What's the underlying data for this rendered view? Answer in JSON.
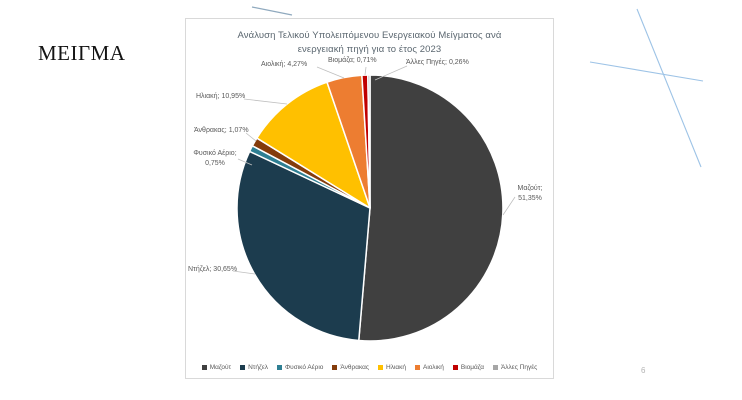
{
  "page": {
    "kicker": "ΜΕΙΓΜΑ",
    "page_number": "6"
  },
  "chart_data": {
    "type": "pie",
    "title_lines": [
      "Ανάλυση Τελικού Υπολειπόμενου Ενεργειακού Μείγματος ανά",
      "ενεργειακή πηγή για το έτος 2023"
    ],
    "unit": "%",
    "start_angle": "top",
    "direction": "clockwise",
    "legend_position": "bottom",
    "slices": [
      {
        "label": "Μαζούτ",
        "value": 51.35,
        "callout_lines": [
          "Μαζούτ;",
          "51,35%"
        ],
        "color": "#404040"
      },
      {
        "label": "Ντήζελ",
        "value": 30.65,
        "callout_lines": [
          "Ντήζελ; 30,65%"
        ],
        "color": "#1C3C4E"
      },
      {
        "label": "Φυσικό Αέριο",
        "value": 0.75,
        "callout_lines": [
          "Φυσικό Αέριο;",
          "0,75%"
        ],
        "color": "#2E7F93"
      },
      {
        "label": "Άνθρακας",
        "value": 1.07,
        "callout_lines": [
          "Άνθρακας; 1,07%"
        ],
        "color": "#843C0C"
      },
      {
        "label": "Ηλιακή",
        "value": 10.95,
        "callout_lines": [
          "Ηλιακή; 10,95%"
        ],
        "color": "#FFC000"
      },
      {
        "label": "Αιολική",
        "value": 4.27,
        "callout_lines": [
          "Αιολική; 4,27%"
        ],
        "color": "#ED7D31"
      },
      {
        "label": "Βιομάζα",
        "value": 0.71,
        "callout_lines": [
          "Βιομάζα; 0,71%"
        ],
        "color": "#C00000"
      },
      {
        "label": "Άλλες Πηγές",
        "value": 0.26,
        "callout_lines": [
          "Άλλες Πηγές; 0,26%"
        ],
        "color": "#A6A6A6"
      }
    ],
    "callout_color": "#595959",
    "leader_line_color": "#BFBFBF"
  },
  "decor": {
    "crossing_lines_color": "#9DC3E6",
    "swoosh_color": "#8FA9BE"
  }
}
